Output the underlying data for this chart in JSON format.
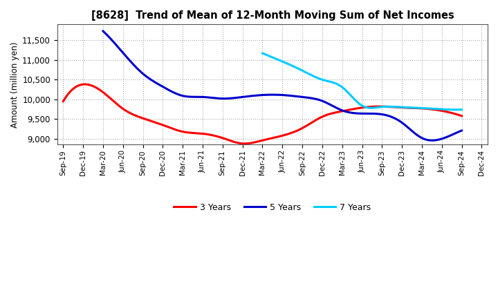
{
  "title": "[8628]  Trend of Mean of 12-Month Moving Sum of Net Incomes",
  "ylabel": "Amount (million yen)",
  "background_color": "#ffffff",
  "plot_bg_color": "#ffffff",
  "ylim": [
    8850,
    11900
  ],
  "yticks": [
    9000,
    9500,
    10000,
    10500,
    11000,
    11500
  ],
  "x_labels": [
    "Sep-19",
    "Dec-19",
    "Mar-20",
    "Jun-20",
    "Sep-20",
    "Dec-20",
    "Mar-21",
    "Jun-21",
    "Sep-21",
    "Dec-21",
    "Mar-22",
    "Jun-22",
    "Sep-22",
    "Dec-22",
    "Mar-23",
    "Jun-23",
    "Sep-23",
    "Dec-23",
    "Mar-24",
    "Jun-24",
    "Sep-24",
    "Dec-24"
  ],
  "series": {
    "3 Years": {
      "color": "#ff0000",
      "linewidth": 2.2,
      "data": [
        9950,
        null,
        null,
        null,
        null,
        null,
        null,
        null,
        null,
        null,
        null,
        null,
        null,
        null,
        null,
        null,
        null,
        null,
        null,
        null,
        null,
        null
      ]
    },
    "5 Years": {
      "color": "#0000cc",
      "linewidth": 2.2,
      "data": [
        null,
        null,
        null,
        null,
        null,
        null,
        null,
        null,
        null,
        null,
        null,
        null,
        null,
        null,
        null,
        null,
        null,
        null,
        null,
        null,
        null,
        null
      ]
    },
    "7 Years": {
      "color": "#00ccff",
      "linewidth": 2.2,
      "data": [
        null,
        null,
        null,
        null,
        null,
        null,
        null,
        null,
        null,
        null,
        null,
        null,
        null,
        null,
        null,
        null,
        null,
        null,
        null,
        null,
        null,
        null
      ]
    },
    "10 Years": {
      "color": "#00aa00",
      "linewidth": 2.2,
      "data": [
        null,
        null,
        null,
        null,
        null,
        null,
        null,
        null,
        null,
        null,
        null,
        null,
        null,
        null,
        null,
        null,
        null,
        null,
        null,
        null,
        null,
        null
      ]
    }
  },
  "series_3y": [
    9950,
    10380,
    10180,
    9760,
    9520,
    9350,
    9180,
    9130,
    9020,
    8880,
    8960,
    9080,
    9270,
    9560,
    9700,
    9790,
    9820,
    9790,
    9770,
    9710,
    9580,
    null
  ],
  "series_5y": [
    null,
    null,
    11730,
    11180,
    10650,
    10320,
    10090,
    10060,
    10020,
    10060,
    10110,
    10110,
    10060,
    9960,
    9720,
    9640,
    9620,
    9410,
    9020,
    9000,
    9210,
    null
  ],
  "series_7y": [
    null,
    null,
    null,
    null,
    null,
    null,
    null,
    null,
    null,
    null,
    11170,
    10960,
    10730,
    10500,
    10310,
    9840,
    9810,
    9800,
    9780,
    9750,
    9740,
    null
  ],
  "series_10y": [
    null,
    null,
    null,
    null,
    null,
    null,
    null,
    null,
    null,
    null,
    null,
    null,
    null,
    null,
    null,
    null,
    null,
    null,
    null,
    null,
    null,
    null
  ],
  "colors": {
    "3 Years": "#ff0000",
    "5 Years": "#0000cc",
    "7 Years": "#00ccff",
    "10 Years": "#00aa00"
  }
}
